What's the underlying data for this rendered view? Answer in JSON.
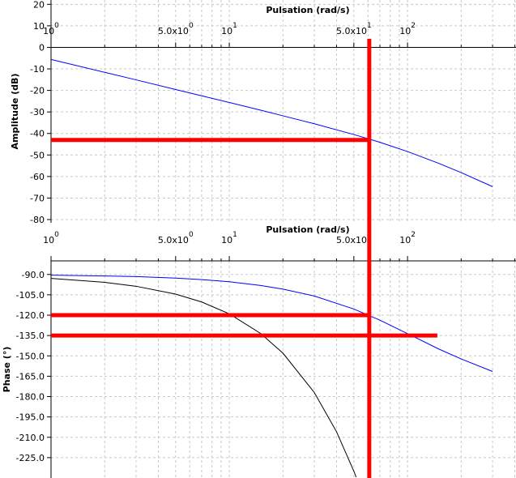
{
  "chart_data": [
    {
      "type": "line",
      "xlabel": "Pulsation (rad/s)",
      "ylabel": "Amplitude (dB)",
      "xscale": "log",
      "xlim": [
        1,
        406
      ],
      "ylim": [
        -81.5,
        22
      ],
      "x_axis_position": "origin",
      "xticks": [
        {
          "value": 1,
          "label": "10",
          "exponent": "0"
        },
        {
          "value": 5,
          "label": "5.0x10",
          "exponent": "0"
        },
        {
          "value": 10,
          "label": "10",
          "exponent": "1"
        },
        {
          "value": 50,
          "label": "5.0x10",
          "exponent": "1"
        },
        {
          "value": 100,
          "label": "10",
          "exponent": "2"
        }
      ],
      "xgrid": [
        2,
        3,
        4,
        6,
        7,
        8,
        9,
        20,
        30,
        40,
        60,
        70,
        80,
        90,
        200,
        300,
        400
      ],
      "yticks": [
        20,
        10,
        0,
        -10,
        -20,
        -30,
        -40,
        -50,
        -60,
        -70,
        -80
      ],
      "grid": true,
      "series": [
        {
          "color": "#0000ff",
          "x": [
            1,
            2,
            3,
            5,
            7,
            10,
            15,
            20,
            30,
            50,
            70,
            100,
            150,
            200,
            300
          ],
          "values": [
            -5.6,
            -11.6,
            -15.1,
            -19.6,
            -22.5,
            -25.6,
            -29.2,
            -31.8,
            -35.5,
            -40.5,
            -44.1,
            -48.4,
            -53.9,
            -58.2,
            -64.7
          ]
        }
      ],
      "markers": {
        "color": "#ff0000",
        "vlines": [
          {
            "x": 61,
            "y_top": 4
          }
        ],
        "hlines": [
          {
            "y": -43,
            "x_end": 61
          }
        ]
      }
    },
    {
      "type": "line",
      "xlabel": "Pulsation (rad/s)",
      "ylabel": "Phase (°)",
      "xscale": "log",
      "xlim": [
        1,
        406
      ],
      "ylim": [
        -240,
        -80
      ],
      "x_axis_position": "top",
      "xticks": [
        {
          "value": 1,
          "label": "10",
          "exponent": "0"
        },
        {
          "value": 5,
          "label": "5.0x10",
          "exponent": "0"
        },
        {
          "value": 10,
          "label": "10",
          "exponent": "1"
        },
        {
          "value": 50,
          "label": "5.0x10",
          "exponent": "1"
        },
        {
          "value": 100,
          "label": "10",
          "exponent": "2"
        }
      ],
      "xgrid": [
        2,
        3,
        4,
        6,
        7,
        8,
        9,
        20,
        30,
        40,
        60,
        70,
        80,
        90,
        200,
        300,
        400
      ],
      "yticks": [
        {
          "value": -90,
          "label": "-90.0"
        },
        {
          "value": -105,
          "label": "-105.0"
        },
        {
          "value": -120,
          "label": "-120.0"
        },
        {
          "value": -135,
          "label": "-135.0"
        },
        {
          "value": -150,
          "label": "-150.0"
        },
        {
          "value": -165,
          "label": "-165.0"
        },
        {
          "value": -180,
          "label": "-180.0"
        },
        {
          "value": -195,
          "label": "-195.0"
        },
        {
          "value": -210,
          "label": "-210.0"
        },
        {
          "value": -225,
          "label": "-225.0"
        }
      ],
      "grid": true,
      "series": [
        {
          "color": "#0000ff",
          "x": [
            1,
            2,
            3,
            5,
            7,
            10,
            15,
            20,
            30,
            50,
            70,
            100,
            150,
            200,
            300
          ],
          "values": [
            -90.5,
            -91.1,
            -91.6,
            -92.7,
            -93.8,
            -95.4,
            -98.1,
            -100.8,
            -105.9,
            -115.5,
            -123.7,
            -133.6,
            -145.0,
            -152.3,
            -161.5
          ]
        },
        {
          "color": "#000000",
          "x": [
            1,
            2,
            3,
            5,
            7,
            10,
            15,
            20,
            30,
            40,
            50,
            51.5
          ],
          "values": [
            -92.9,
            -95.8,
            -98.7,
            -104.5,
            -110.3,
            -119,
            -133.5,
            -148,
            -177,
            -206,
            -235,
            -239.4
          ]
        }
      ],
      "markers": {
        "color": "#ff0000",
        "hlines": [
          {
            "y": -120,
            "x_end": 61
          },
          {
            "y": -135,
            "x_end": 147
          }
        ]
      }
    }
  ]
}
